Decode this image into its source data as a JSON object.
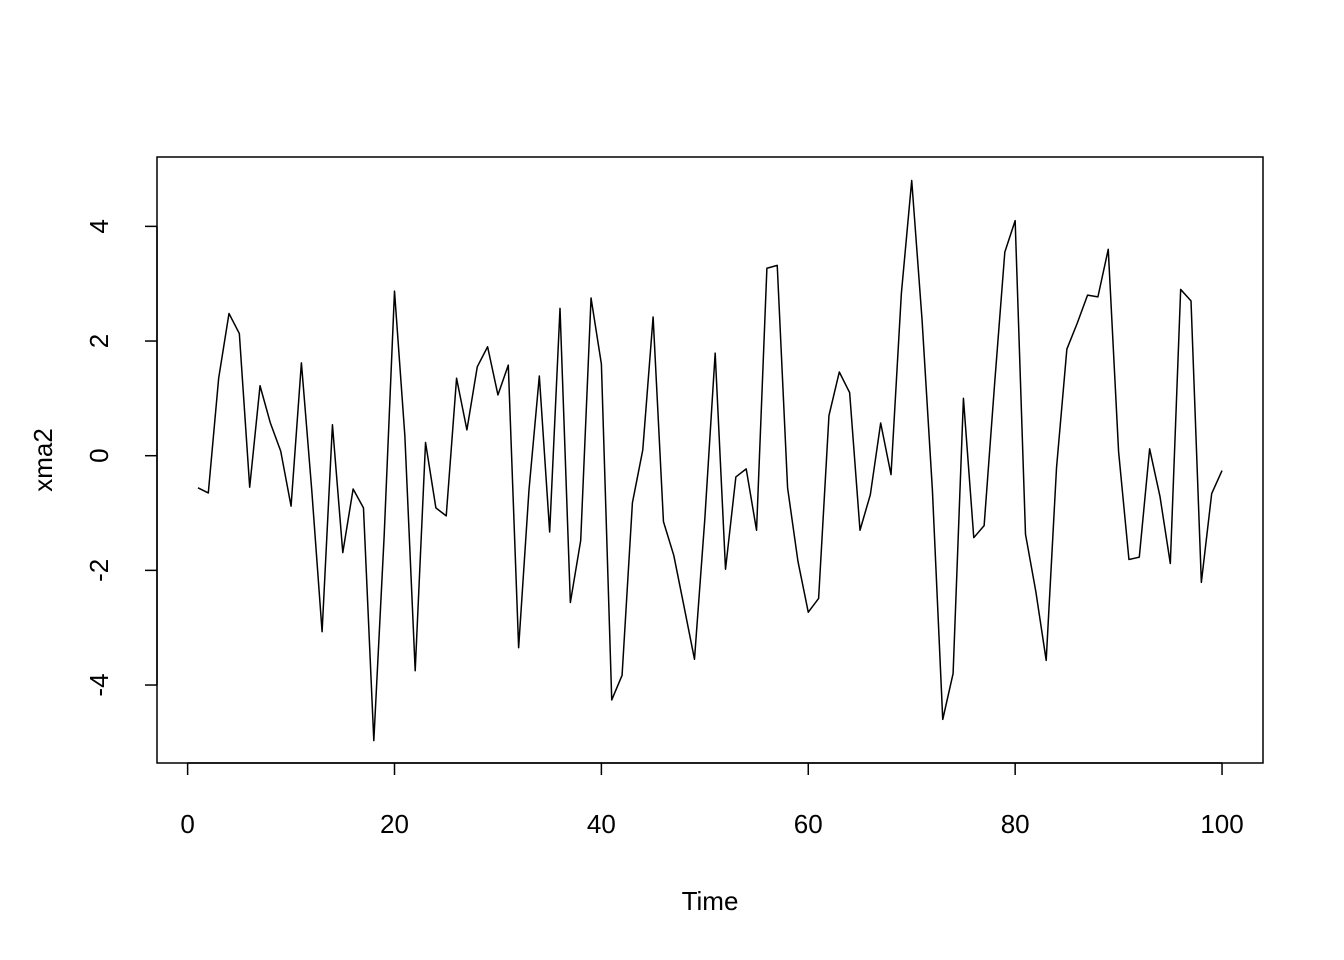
{
  "chart_data": {
    "type": "line",
    "xlabel": "Time",
    "ylabel": "xma2",
    "x": [
      1,
      2,
      3,
      4,
      5,
      6,
      7,
      8,
      9,
      10,
      11,
      12,
      13,
      14,
      15,
      16,
      17,
      18,
      19,
      20,
      21,
      22,
      23,
      24,
      25,
      26,
      27,
      28,
      29,
      30,
      31,
      32,
      33,
      34,
      35,
      36,
      37,
      38,
      39,
      40,
      41,
      42,
      43,
      44,
      45,
      46,
      47,
      48,
      49,
      50,
      51,
      52,
      53,
      54,
      55,
      56,
      57,
      58,
      59,
      60,
      61,
      62,
      63,
      64,
      65,
      66,
      67,
      68,
      69,
      70,
      71,
      72,
      73,
      74,
      75,
      76,
      77,
      78,
      79,
      80,
      81,
      82,
      83,
      84,
      85,
      86,
      87,
      88,
      89,
      90,
      91,
      92,
      93,
      94,
      95,
      96,
      97,
      98,
      99,
      100
    ],
    "series": [
      {
        "name": "xma2",
        "color": "#000000",
        "values": [
          -0.56,
          -0.65,
          1.35,
          2.48,
          2.13,
          -0.55,
          1.22,
          0.57,
          0.08,
          -0.88,
          1.62,
          -0.6,
          -3.07,
          0.54,
          -1.69,
          -0.58,
          -0.91,
          -4.97,
          -1.4,
          2.87,
          0.35,
          -3.75,
          0.23,
          -0.91,
          -1.05,
          1.35,
          0.45,
          1.55,
          1.9,
          1.06,
          1.58,
          -3.35,
          -0.6,
          1.39,
          -1.33,
          2.57,
          -2.56,
          -1.48,
          2.75,
          1.6,
          -4.26,
          -3.83,
          -0.82,
          0.1,
          2.42,
          -1.15,
          -1.74,
          -2.64,
          -3.55,
          -1.1,
          1.79,
          -1.98,
          -0.37,
          -0.23,
          -1.3,
          3.27,
          3.32,
          -0.56,
          -1.84,
          -2.73,
          -2.49,
          0.7,
          1.46,
          1.1,
          -1.3,
          -0.68,
          0.57,
          -0.33,
          2.83,
          4.8,
          2.37,
          -0.6,
          -4.6,
          -3.8,
          1.0,
          -1.43,
          -1.22,
          1.22,
          3.55,
          4.1,
          -1.37,
          -2.37,
          -3.57,
          -0.21,
          1.86,
          2.31,
          2.8,
          2.77,
          3.6,
          0.07,
          -1.81,
          -1.77,
          0.12,
          -0.71,
          -1.88,
          2.9,
          2.7,
          -2.21,
          -0.66,
          -0.26
        ]
      }
    ],
    "xlim": [
      -2.96,
      103.96
    ],
    "ylim": [
      -5.36,
      5.21
    ],
    "xticks": [
      0,
      20,
      40,
      60,
      80,
      100
    ],
    "yticks": [
      -4,
      -2,
      0,
      2,
      4
    ],
    "grid": false
  }
}
